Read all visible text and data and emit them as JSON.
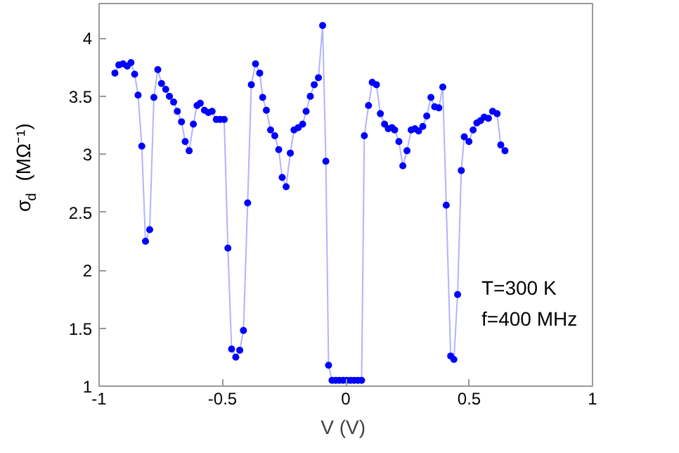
{
  "chart_data": {
    "type": "line",
    "xlabel": "V  (V)",
    "ylabel": "σ$_{d}$  (MΩ⁻¹)",
    "xlim": [
      -1,
      1
    ],
    "ylim": [
      1,
      4.3
    ],
    "xticks": [
      -1,
      -0.5,
      0,
      0.5,
      1
    ],
    "yticks": [
      1,
      1.5,
      2,
      2.5,
      3,
      3.5,
      4
    ],
    "grid": false,
    "marker": "circle",
    "line_style": "solid",
    "annotations": [
      "T=300 K",
      "f=400 MHz"
    ],
    "series": [
      {
        "color": "#0000ff",
        "x": [
          -0.936,
          -0.92,
          -0.903,
          -0.886,
          -0.871,
          -0.856,
          -0.842,
          -0.827,
          -0.812,
          -0.795,
          -0.778,
          -0.762,
          -0.747,
          -0.73,
          -0.715,
          -0.698,
          -0.683,
          -0.666,
          -0.651,
          -0.635,
          -0.618,
          -0.603,
          -0.59,
          -0.573,
          -0.557,
          -0.542,
          -0.525,
          -0.51,
          -0.493,
          -0.478,
          -0.463,
          -0.446,
          -0.43,
          -0.415,
          -0.398,
          -0.383,
          -0.366,
          -0.349,
          -0.337,
          -0.322,
          -0.305,
          -0.288,
          -0.272,
          -0.258,
          -0.242,
          -0.225,
          -0.21,
          -0.193,
          -0.175,
          -0.161,
          -0.144,
          -0.128,
          -0.111,
          -0.094,
          -0.081,
          -0.07,
          -0.056,
          -0.041,
          -0.026,
          -0.011,
          0.004,
          0.019,
          0.034,
          0.049,
          0.064,
          0.075,
          0.092,
          0.107,
          0.124,
          0.14,
          0.157,
          0.172,
          0.187,
          0.198,
          0.215,
          0.231,
          0.248,
          0.265,
          0.28,
          0.295,
          0.312,
          0.328,
          0.345,
          0.36,
          0.377,
          0.393,
          0.407,
          0.425,
          0.438,
          0.453,
          0.468,
          0.48,
          0.499,
          0.516,
          0.531,
          0.546,
          0.561,
          0.578,
          0.595,
          0.613,
          0.628,
          0.645
        ],
        "values": [
          3.7,
          3.77,
          3.78,
          3.76,
          3.79,
          3.69,
          3.51,
          3.07,
          2.25,
          2.35,
          3.49,
          3.73,
          3.61,
          3.56,
          3.5,
          3.45,
          3.37,
          3.28,
          3.11,
          3.03,
          3.26,
          3.42,
          3.44,
          3.38,
          3.36,
          3.37,
          3.3,
          3.3,
          3.3,
          2.19,
          1.32,
          1.25,
          1.31,
          1.48,
          2.58,
          3.6,
          3.78,
          3.7,
          3.49,
          3.38,
          3.21,
          3.16,
          3.04,
          2.8,
          2.72,
          3.01,
          3.21,
          3.23,
          3.26,
          3.37,
          3.5,
          3.6,
          3.66,
          4.11,
          2.94,
          1.18,
          1.05,
          1.05,
          1.05,
          1.05,
          1.05,
          1.05,
          1.05,
          1.05,
          1.05,
          3.16,
          3.42,
          3.62,
          3.6,
          3.35,
          3.26,
          3.22,
          3.23,
          3.21,
          3.11,
          2.9,
          3.03,
          3.21,
          3.22,
          3.2,
          3.24,
          3.33,
          3.49,
          3.41,
          3.4,
          3.58,
          2.56,
          1.26,
          1.23,
          1.79,
          2.86,
          3.15,
          3.11,
          3.21,
          3.27,
          3.29,
          3.32,
          3.31,
          3.37,
          3.35,
          3.08,
          3.03
        ]
      }
    ]
  }
}
